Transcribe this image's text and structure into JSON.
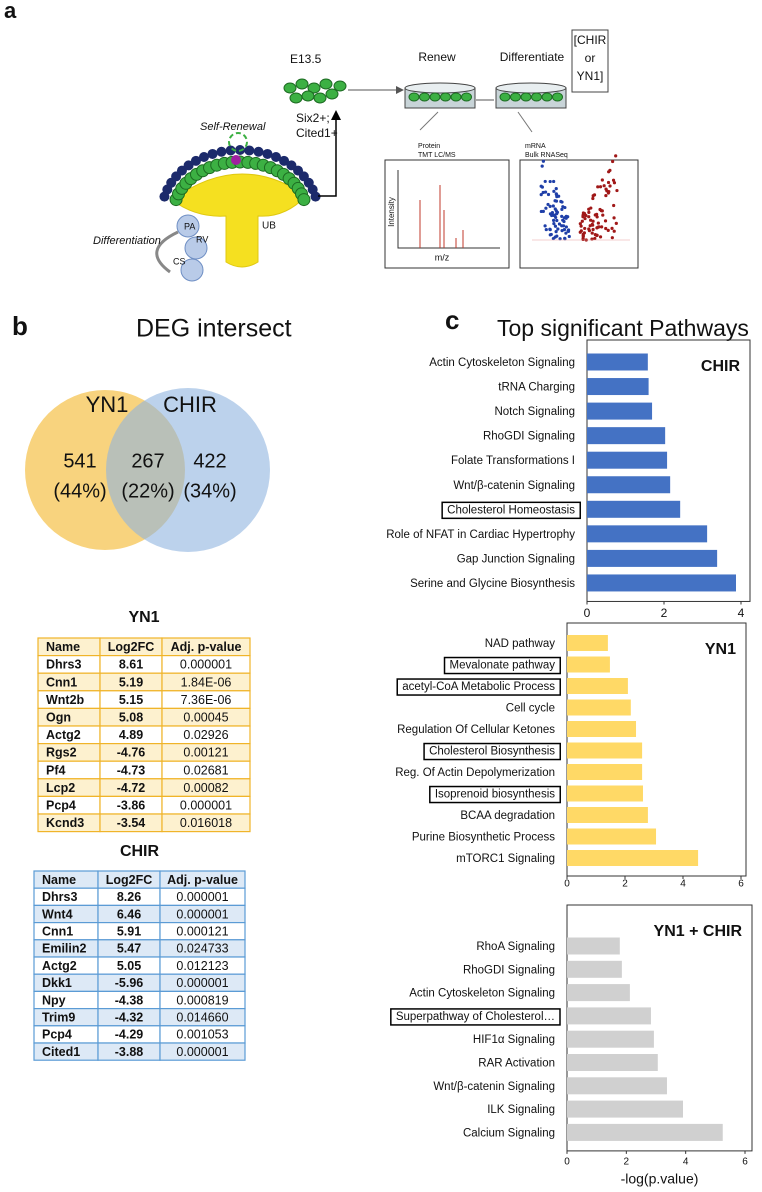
{
  "panel_a": {
    "label": "a",
    "stage": "E13.5",
    "markers": [
      "Six2+;",
      "Cited1+"
    ],
    "renew": "Renew",
    "differentiate": "Differentiate",
    "treatment": [
      "[CHIR",
      "or",
      "YN1]"
    ],
    "self_renewal": "Self-Renewal",
    "differentiation": "Differentiation",
    "structures": [
      "UB",
      "PA",
      "RV",
      "CS"
    ],
    "protein": [
      "Protein",
      "TMT LC/MS"
    ],
    "mrna": [
      "mRNA",
      "Bulk RNASeq"
    ],
    "ms_axes": [
      "Intensity",
      "m/z"
    ]
  },
  "panel_b": {
    "label": "b",
    "title": "DEG intersect",
    "venn": {
      "sets": [
        "YN1",
        "CHIR"
      ],
      "counts": [
        541,
        267,
        422
      ],
      "percents": [
        "(44%)",
        "(22%)",
        "(34%)"
      ]
    },
    "tables": [
      {
        "title": "YN1",
        "header": [
          "Name",
          "Log2FC",
          "Adj. p-value"
        ],
        "rows": [
          [
            "Dhrs3",
            "8.61",
            "0.000001"
          ],
          [
            "Cnn1",
            "5.19",
            "1.84E-06"
          ],
          [
            "Wnt2b",
            "5.15",
            "7.36E-06"
          ],
          [
            "Ogn",
            "5.08",
            "0.00045"
          ],
          [
            "Actg2",
            "4.89",
            "0.02926"
          ],
          [
            "Rgs2",
            "-4.76",
            "0.00121"
          ],
          [
            "Pf4",
            "-4.73",
            "0.02681"
          ],
          [
            "Lcp2",
            "-4.72",
            "0.00082"
          ],
          [
            "Pcp4",
            "-3.86",
            "0.000001"
          ],
          [
            "Kcnd3",
            "-3.54",
            "0.016018"
          ]
        ]
      },
      {
        "title": "CHIR",
        "header": [
          "Name",
          "Log2FC",
          "Adj. p-value"
        ],
        "rows": [
          [
            "Dhrs3",
            "8.26",
            "0.000001"
          ],
          [
            "Wnt4",
            "6.46",
            "0.000001"
          ],
          [
            "Cnn1",
            "5.91",
            "0.000121"
          ],
          [
            "Emilin2",
            "5.47",
            "0.024733"
          ],
          [
            "Actg2",
            "5.05",
            "0.012123"
          ],
          [
            "Dkk1",
            "-5.96",
            "0.000001"
          ],
          [
            "Npy",
            "-4.38",
            "0.000819"
          ],
          [
            "Trim9",
            "-4.32",
            "0.014660"
          ],
          [
            "Pcp4",
            "-4.29",
            "0.001053"
          ],
          [
            "Cited1",
            "-3.88",
            "0.000001"
          ]
        ]
      }
    ]
  },
  "panel_c": {
    "label": "c",
    "title": "Top significant Pathways"
  },
  "chart_data": [
    {
      "type": "bar",
      "orientation": "horizontal",
      "title": "CHIR",
      "color": "#4472c4",
      "categories": [
        "Actin Cytoskeleton Signaling",
        "tRNA Charging",
        "Notch Signaling",
        "RhoGDI Signaling",
        "Folate Transformations I",
        "Wnt/β-catenin Signaling",
        "Cholesterol Homeostasis",
        "Role of NFAT in Cardiac Hypertrophy",
        "Gap Junction Signaling",
        "Serine and Glycine Biosynthesis"
      ],
      "values": [
        1.58,
        1.6,
        1.69,
        2.03,
        2.08,
        2.16,
        2.42,
        3.12,
        3.38,
        3.87
      ],
      "highlight": [
        false,
        false,
        false,
        false,
        false,
        false,
        true,
        false,
        false,
        false
      ],
      "xlim": [
        0,
        4
      ],
      "xticks": [
        0,
        2,
        4
      ]
    },
    {
      "type": "bar",
      "orientation": "horizontal",
      "title": "YN1",
      "color": "#ffd966",
      "categories": [
        "NAD pathway",
        "Mevalonate  pathway",
        "acetyl-CoA Metabolic Process",
        "Cell cycle",
        "Regulation Of Cellular Ketones",
        "Cholesterol Biosynthesis",
        "Reg. Of Actin Depolymerization",
        "Isoprenoid biosynthesis",
        "BCAA degradation",
        "Purine Biosynthetic Process",
        "mTORC1 Signaling"
      ],
      "values": [
        1.41,
        1.48,
        2.1,
        2.2,
        2.38,
        2.59,
        2.59,
        2.62,
        2.79,
        3.07,
        4.52
      ],
      "highlight": [
        false,
        true,
        true,
        false,
        false,
        true,
        false,
        true,
        false,
        false,
        false
      ],
      "xlim": [
        0,
        6
      ],
      "xticks": [
        0,
        2,
        4,
        6
      ]
    },
    {
      "type": "bar",
      "orientation": "horizontal",
      "title": "YN1 + CHIR",
      "color": "#d0d0d0",
      "categories": [
        "RhoA Signaling",
        "RhoGDI Signaling",
        "Actin Cytoskeleton Signaling",
        "Superpathway of Cholesterol…",
        "HIF1α Signaling",
        "RAR Activation",
        "Wnt/β-catenin Signaling",
        "ILK Signaling",
        "Calcium Signaling"
      ],
      "values": [
        1.78,
        1.85,
        2.12,
        2.83,
        2.93,
        3.06,
        3.37,
        3.91,
        5.25
      ],
      "highlight": [
        false,
        false,
        false,
        true,
        false,
        false,
        false,
        false,
        false
      ],
      "xlim": [
        0,
        6
      ],
      "xticks": [
        0,
        2,
        4,
        6
      ],
      "xlabel": "-log(p.value)"
    }
  ]
}
